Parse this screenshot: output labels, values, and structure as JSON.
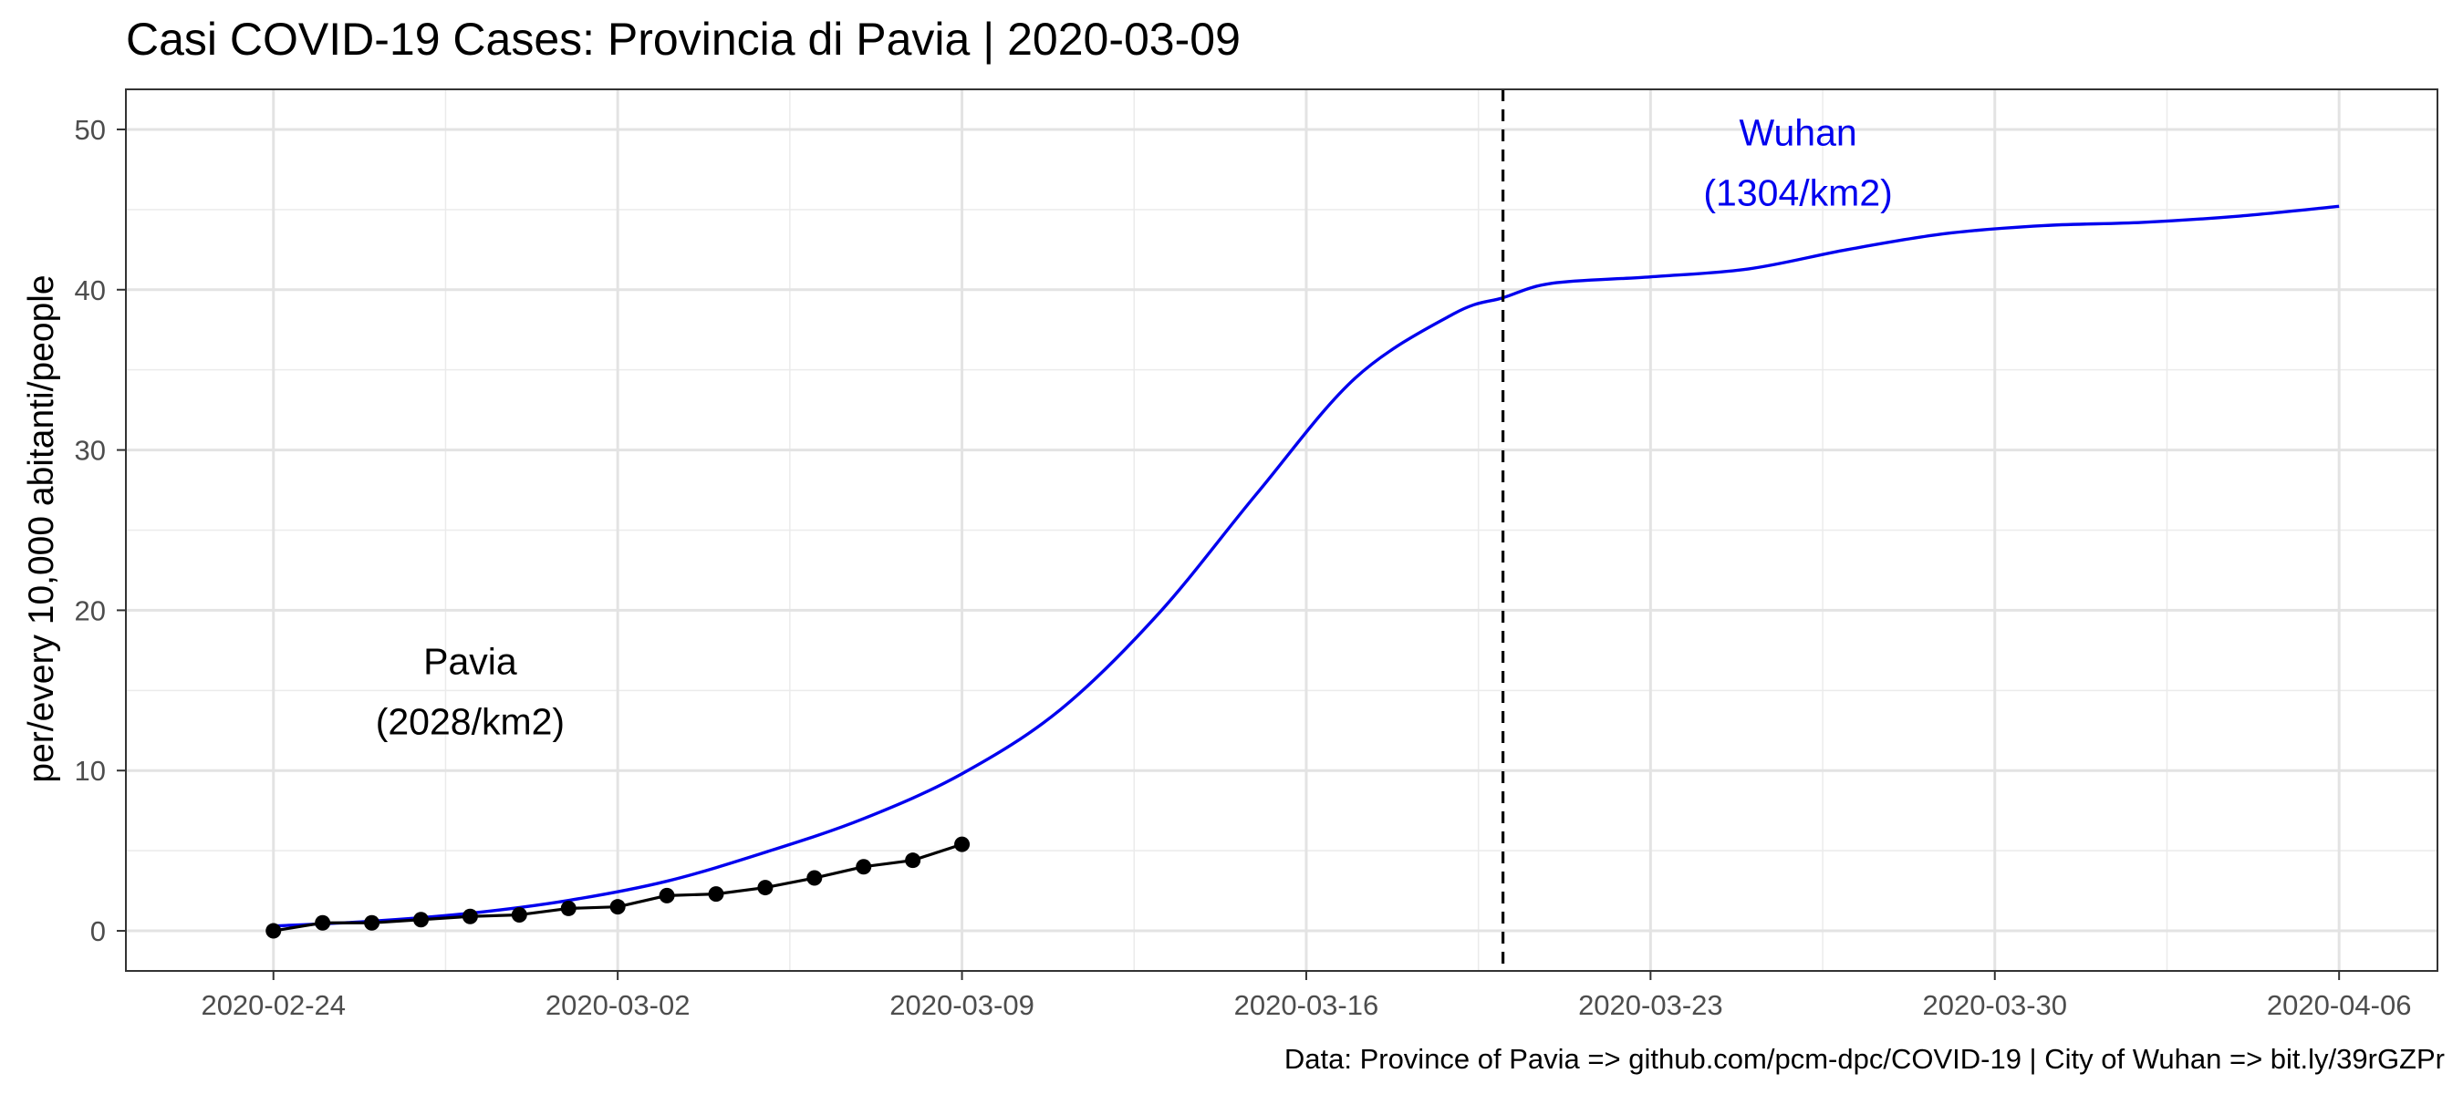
{
  "chart_data": {
    "type": "line",
    "title": "Casi COVID-19 Cases: Provincia di Pavia | 2020-03-09",
    "ylabel": "per/every 10,000 abitanti/people",
    "xlabel": "",
    "caption": "Data: Province of Pavia => github.com/pcm-dpc/COVID-19 | City of Wuhan => bit.ly/39rGZPr",
    "x_axis": {
      "type": "date",
      "range": [
        "2020-02-21",
        "2020-04-08"
      ],
      "ticks": [
        "2020-02-24",
        "2020-03-02",
        "2020-03-09",
        "2020-03-16",
        "2020-03-23",
        "2020-03-30",
        "2020-04-06"
      ]
    },
    "y_axis": {
      "range": [
        -2.5,
        52.5
      ],
      "ticks": [
        0,
        10,
        20,
        30,
        40,
        50
      ]
    },
    "grid": true,
    "vline": {
      "x": "2020-03-20",
      "style": "dashed",
      "color": "#000000"
    },
    "series": [
      {
        "name": "Wuhan",
        "color": "#0000ee",
        "markers": false,
        "points": [
          [
            "2020-02-24",
            0.3
          ],
          [
            "2020-02-26",
            0.6
          ],
          [
            "2020-02-28",
            1.1
          ],
          [
            "2020-03-01",
            1.9
          ],
          [
            "2020-03-03",
            3.1
          ],
          [
            "2020-03-05",
            4.9
          ],
          [
            "2020-03-07",
            7.0
          ],
          [
            "2020-03-09",
            9.8
          ],
          [
            "2020-03-11",
            13.8
          ],
          [
            "2020-03-13",
            19.8
          ],
          [
            "2020-03-15",
            27.3
          ],
          [
            "2020-03-17",
            34.5
          ],
          [
            "2020-03-19",
            38.5
          ],
          [
            "2020-03-20",
            39.5
          ],
          [
            "2020-03-21",
            40.4
          ],
          [
            "2020-03-23",
            40.8
          ],
          [
            "2020-03-25",
            41.3
          ],
          [
            "2020-03-27",
            42.5
          ],
          [
            "2020-03-29",
            43.5
          ],
          [
            "2020-03-31",
            44.0
          ],
          [
            "2020-04-02",
            44.2
          ],
          [
            "2020-04-04",
            44.6
          ],
          [
            "2020-04-06",
            45.2
          ]
        ]
      },
      {
        "name": "Pavia",
        "color": "#000000",
        "markers": true,
        "points": [
          [
            "2020-02-24",
            0.0
          ],
          [
            "2020-02-25",
            0.5
          ],
          [
            "2020-02-26",
            0.5
          ],
          [
            "2020-02-27",
            0.7
          ],
          [
            "2020-02-28",
            0.9
          ],
          [
            "2020-02-29",
            1.0
          ],
          [
            "2020-03-01",
            1.4
          ],
          [
            "2020-03-02",
            1.5
          ],
          [
            "2020-03-03",
            2.2
          ],
          [
            "2020-03-04",
            2.3
          ],
          [
            "2020-03-05",
            2.7
          ],
          [
            "2020-03-06",
            3.3
          ],
          [
            "2020-03-07",
            4.0
          ],
          [
            "2020-03-08",
            4.4
          ],
          [
            "2020-03-09",
            5.4
          ]
        ]
      }
    ],
    "annotations": [
      {
        "lines": [
          "Wuhan",
          "(1304/km2)"
        ],
        "x": "2020-03-26",
        "y": 49,
        "color": "#0000ee"
      },
      {
        "lines": [
          "Pavia",
          "(2028/km2)"
        ],
        "x": "2020-02-28",
        "y": 16,
        "color": "#000000"
      }
    ]
  }
}
